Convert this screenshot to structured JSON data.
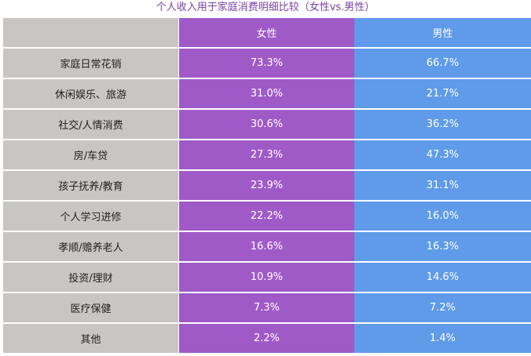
{
  "colors": {
    "title": "#7a3fa6",
    "label_column": "#c8c6c4",
    "female_column": "#a05ac8",
    "male_column": "#5f9be9"
  },
  "chart_data": {
    "type": "table",
    "title": "个人收入用于家庭消费明细比较（女性vs.男性）",
    "columns": [
      "",
      "女性",
      "男性"
    ],
    "categories": [
      "家庭日常花销",
      "休闲娱乐、旅游",
      "社交/人情消费",
      "房/车贷",
      "孩子抚养/教育",
      "个人学习进修",
      "孝顺/赡养老人",
      "投资/理财",
      "医疗保健",
      "其他"
    ],
    "series": [
      {
        "name": "女性",
        "values": [
          73.3,
          31.0,
          30.6,
          27.3,
          23.9,
          22.2,
          16.6,
          10.9,
          7.3,
          2.2
        ],
        "labels": [
          "73.3%",
          "31.0%",
          "30.6%",
          "27.3%",
          "23.9%",
          "22.2%",
          "16.6%",
          "10.9%",
          "7.3%",
          "2.2%"
        ]
      },
      {
        "name": "男性",
        "values": [
          66.7,
          21.7,
          36.2,
          47.3,
          31.1,
          16.0,
          16.3,
          14.6,
          7.2,
          1.4
        ],
        "labels": [
          "66.7%",
          "21.7%",
          "36.2%",
          "47.3%",
          "31.1%",
          "16.0%",
          "16.3%",
          "14.6%",
          "7.2%",
          "1.4%"
        ]
      }
    ]
  }
}
